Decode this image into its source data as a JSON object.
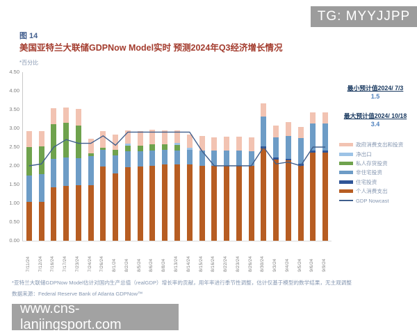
{
  "watermark_top": "TG: MYYJJPP",
  "watermark_bottom": "www.cns-lanjingsport.com",
  "figure_label": "图 14",
  "title": "美国亚特兰大联储GDPNow Model实时 预测2024年Q3经济增长情况",
  "unit_note": "*百分比",
  "annotations": {
    "min_label": "最小预计值2024/ 7/3",
    "min_value": "1.5",
    "max_label": "最大预计值2024/ 10/18",
    "max_value": "3.4"
  },
  "footnote": "*亚特兰大联储GDPNow Model估计对国内生产总值（realGDP）增长率的贡献，用年率进行季节性调整，估计仅基于模型的数学结果，无主观调整",
  "source": "数据来源：Federal Reserve Bank of Atlanta GDPNow™",
  "colors": {
    "pce": "#b75d22",
    "residential": "#2f5597",
    "nonresidential": "#6d9cc6",
    "inventory": "#6fa24d",
    "net_exports": "#9dc3e6",
    "government": "#f2c3b2",
    "nowcast_line": "#3f5e8c",
    "axis_text": "#7f7f7f",
    "title_red": "#a33c2e",
    "label_blue": "#44608f"
  },
  "chart_data": {
    "type": "bar",
    "subtype": "stacked-bar-with-line",
    "title": "美国亚特兰大联储GDPNow Model实时 预测2024年Q3经济增长情况",
    "xlabel": "",
    "ylabel": "*百分比",
    "ylim": [
      0,
      4.5
    ],
    "yticks": [
      "4.50",
      "4.00",
      "3.50",
      "3.00",
      "2.50",
      "2.00",
      "1.50",
      "1.00",
      "0.50",
      "0.00"
    ],
    "grid": false,
    "legend_position": "right",
    "categories": [
      "7/11/24",
      "7/12/24",
      "7/16/24",
      "7/17/24",
      "7/23/24",
      "7/24/24",
      "7/26/24",
      "8/1/24",
      "8/2/24",
      "8/5/24",
      "8/6/24",
      "8/8/24",
      "8/13/24",
      "8/14/24",
      "8/15/24",
      "8/16/24",
      "8/22/24",
      "8/23/24",
      "8/26/24",
      "8/30/24",
      "9/3/24",
      "9/4/24",
      "9/5/24",
      "9/6/24",
      "9/9/24"
    ],
    "series": [
      {
        "name": "个人消费支出",
        "color": "#b75d22",
        "values": [
          1.03,
          1.03,
          1.42,
          1.47,
          1.48,
          1.48,
          1.99,
          1.79,
          1.97,
          1.99,
          2.01,
          2.03,
          2.03,
          2.03,
          2.01,
          2.0,
          2.0,
          2.01,
          2.0,
          2.46,
          2.17,
          2.14,
          2.0,
          2.35,
          2.35
        ]
      },
      {
        "name": "住宅投资",
        "color": "#2f5597",
        "values": [
          0,
          0,
          0,
          0,
          0,
          0,
          0,
          0,
          0,
          0,
          0,
          0,
          0,
          0,
          0,
          0,
          0,
          0,
          0,
          0.06,
          0.05,
          0.05,
          0.05,
          0.05,
          0.05
        ]
      },
      {
        "name": "非住宅投资",
        "color": "#6d9cc6",
        "values": [
          0.71,
          0.74,
          0.76,
          0.75,
          0.72,
          0.78,
          0.44,
          0.49,
          0.42,
          0.4,
          0.4,
          0.39,
          0.38,
          0.4,
          0.4,
          0.41,
          0.4,
          0.4,
          0.39,
          0.79,
          0.54,
          0.6,
          0.69,
          0.73,
          0.73
        ]
      },
      {
        "name": "私人存货投资",
        "color": "#6fa24d",
        "values": [
          0.77,
          0.74,
          0.94,
          0.92,
          0.87,
          0.08,
          0.06,
          0.15,
          0.14,
          0.14,
          0.17,
          0.16,
          0.15,
          0,
          0,
          0,
          0,
          0,
          0,
          0,
          0,
          0,
          0,
          0,
          0
        ]
      },
      {
        "name": "净出口",
        "color": "#9dc3e6",
        "values": [
          0,
          0,
          0,
          0,
          0,
          0,
          0,
          0,
          0.06,
          0,
          0,
          0,
          0.05,
          0.05,
          0,
          0,
          0,
          0,
          0,
          0,
          0,
          0,
          0,
          0,
          0
        ]
      },
      {
        "name": "政府消费支出和投资",
        "color": "#f2c3b2",
        "values": [
          0.42,
          0.42,
          0.41,
          0.41,
          0.45,
          0.39,
          0.44,
          0.41,
          0.36,
          0.39,
          0.38,
          0.37,
          0.33,
          0.35,
          0.38,
          0.36,
          0.38,
          0.37,
          0.37,
          0.36,
          0.31,
          0.37,
          0.3,
          0.29,
          0.29
        ]
      }
    ],
    "line_series": {
      "name": "GDP Nowcast",
      "color": "#3f5e8c",
      "values": [
        2.0,
        2.05,
        2.5,
        2.7,
        2.6,
        2.6,
        2.8,
        2.55,
        2.9,
        2.9,
        2.9,
        2.9,
        2.9,
        2.9,
        2.4,
        2.0,
        2.0,
        2.0,
        2.0,
        2.5,
        2.05,
        2.1,
        2.0,
        2.5,
        2.5
      ]
    }
  }
}
